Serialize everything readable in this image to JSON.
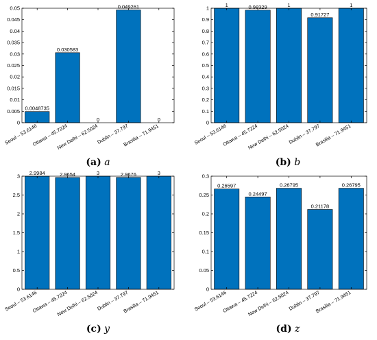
{
  "figure": {
    "panels": [
      {
        "caption_label": "(a)",
        "caption_var": "a"
      },
      {
        "caption_label": "(b)",
        "caption_var": "b"
      },
      {
        "caption_label": "(c)",
        "caption_var": "y"
      },
      {
        "caption_label": "(d)",
        "caption_var": "z"
      }
    ]
  },
  "colors": {
    "bar": "#0072BD",
    "bar_edge": "#000000",
    "axis": "#000000"
  },
  "chart_data": [
    {
      "type": "bar",
      "title": "",
      "xlabel": "",
      "ylabel": "",
      "categories": [
        "Seoul – 53.6146",
        "Ottawa – 45.7224",
        "New Delhi – 62.5024",
        "Dublin – 37.797",
        "Brasilia – 71.9451"
      ],
      "values": [
        0.0048735,
        0.030583,
        0,
        0.049261,
        0
      ],
      "value_labels": [
        "0.0048735",
        "0.030583",
        "0",
        "0.049261",
        "0"
      ],
      "ylim": [
        0,
        0.05
      ],
      "yticks": [
        0,
        0.005,
        0.01,
        0.015,
        0.02,
        0.025,
        0.03,
        0.035,
        0.04,
        0.045,
        0.05
      ],
      "ytick_labels": [
        "0",
        "0.005",
        "0.01",
        "0.015",
        "0.02",
        "0.025",
        "0.03",
        "0.035",
        "0.04",
        "0.045",
        "0.05"
      ],
      "grid": false,
      "legend": "none"
    },
    {
      "type": "bar",
      "title": "",
      "xlabel": "",
      "ylabel": "",
      "categories": [
        "Seoul – 53.6146",
        "Ottawa – 45.7224",
        "New Delhi – 62.5024",
        "Dublin – 37.797",
        "Brasilia – 71.9451"
      ],
      "values": [
        1,
        0.98329,
        1,
        0.91727,
        1
      ],
      "value_labels": [
        "1",
        "0.98329",
        "1",
        "0.91727",
        "1"
      ],
      "ylim": [
        0,
        1
      ],
      "yticks": [
        0,
        0.1,
        0.2,
        0.3,
        0.4,
        0.5,
        0.6,
        0.7,
        0.8,
        0.9,
        1
      ],
      "ytick_labels": [
        "0",
        "0.1",
        "0.2",
        "0.3",
        "0.4",
        "0.5",
        "0.6",
        "0.7",
        "0.8",
        "0.9",
        "1"
      ],
      "grid": false,
      "legend": "none"
    },
    {
      "type": "bar",
      "title": "",
      "xlabel": "",
      "ylabel": "",
      "categories": [
        "Seoul – 53.6146",
        "Ottawa – 45.7224",
        "New Delhi – 62.5024",
        "Dublin – 37.797",
        "Brasilia – 71.9451"
      ],
      "values": [
        2.9984,
        2.9654,
        3,
        2.9676,
        3
      ],
      "value_labels": [
        "2.9984",
        "2.9654",
        "3",
        "2.9676",
        "3"
      ],
      "ylim": [
        0,
        3
      ],
      "yticks": [
        0,
        0.5,
        1,
        1.5,
        2,
        2.5,
        3
      ],
      "ytick_labels": [
        "0",
        "0.5",
        "1",
        "1.5",
        "2",
        "2.5",
        "3"
      ],
      "grid": false,
      "legend": "none"
    },
    {
      "type": "bar",
      "title": "",
      "xlabel": "",
      "ylabel": "",
      "categories": [
        "Seoul – 53.6146",
        "Ottawa – 45.7224",
        "New Delhi – 62.5024",
        "Dublin – 37.797",
        "Brasilia – 71.9451"
      ],
      "values": [
        0.26597,
        0.24497,
        0.26795,
        0.21178,
        0.26795
      ],
      "value_labels": [
        "0.26597",
        "0.24497",
        "0.26795",
        "0.21178",
        "0.26795"
      ],
      "ylim": [
        0,
        0.3
      ],
      "yticks": [
        0,
        0.05,
        0.1,
        0.15,
        0.2,
        0.25,
        0.3
      ],
      "ytick_labels": [
        "0",
        "0.05",
        "0.1",
        "0.15",
        "0.2",
        "0.25",
        "0.3"
      ],
      "grid": false,
      "legend": "none"
    }
  ]
}
